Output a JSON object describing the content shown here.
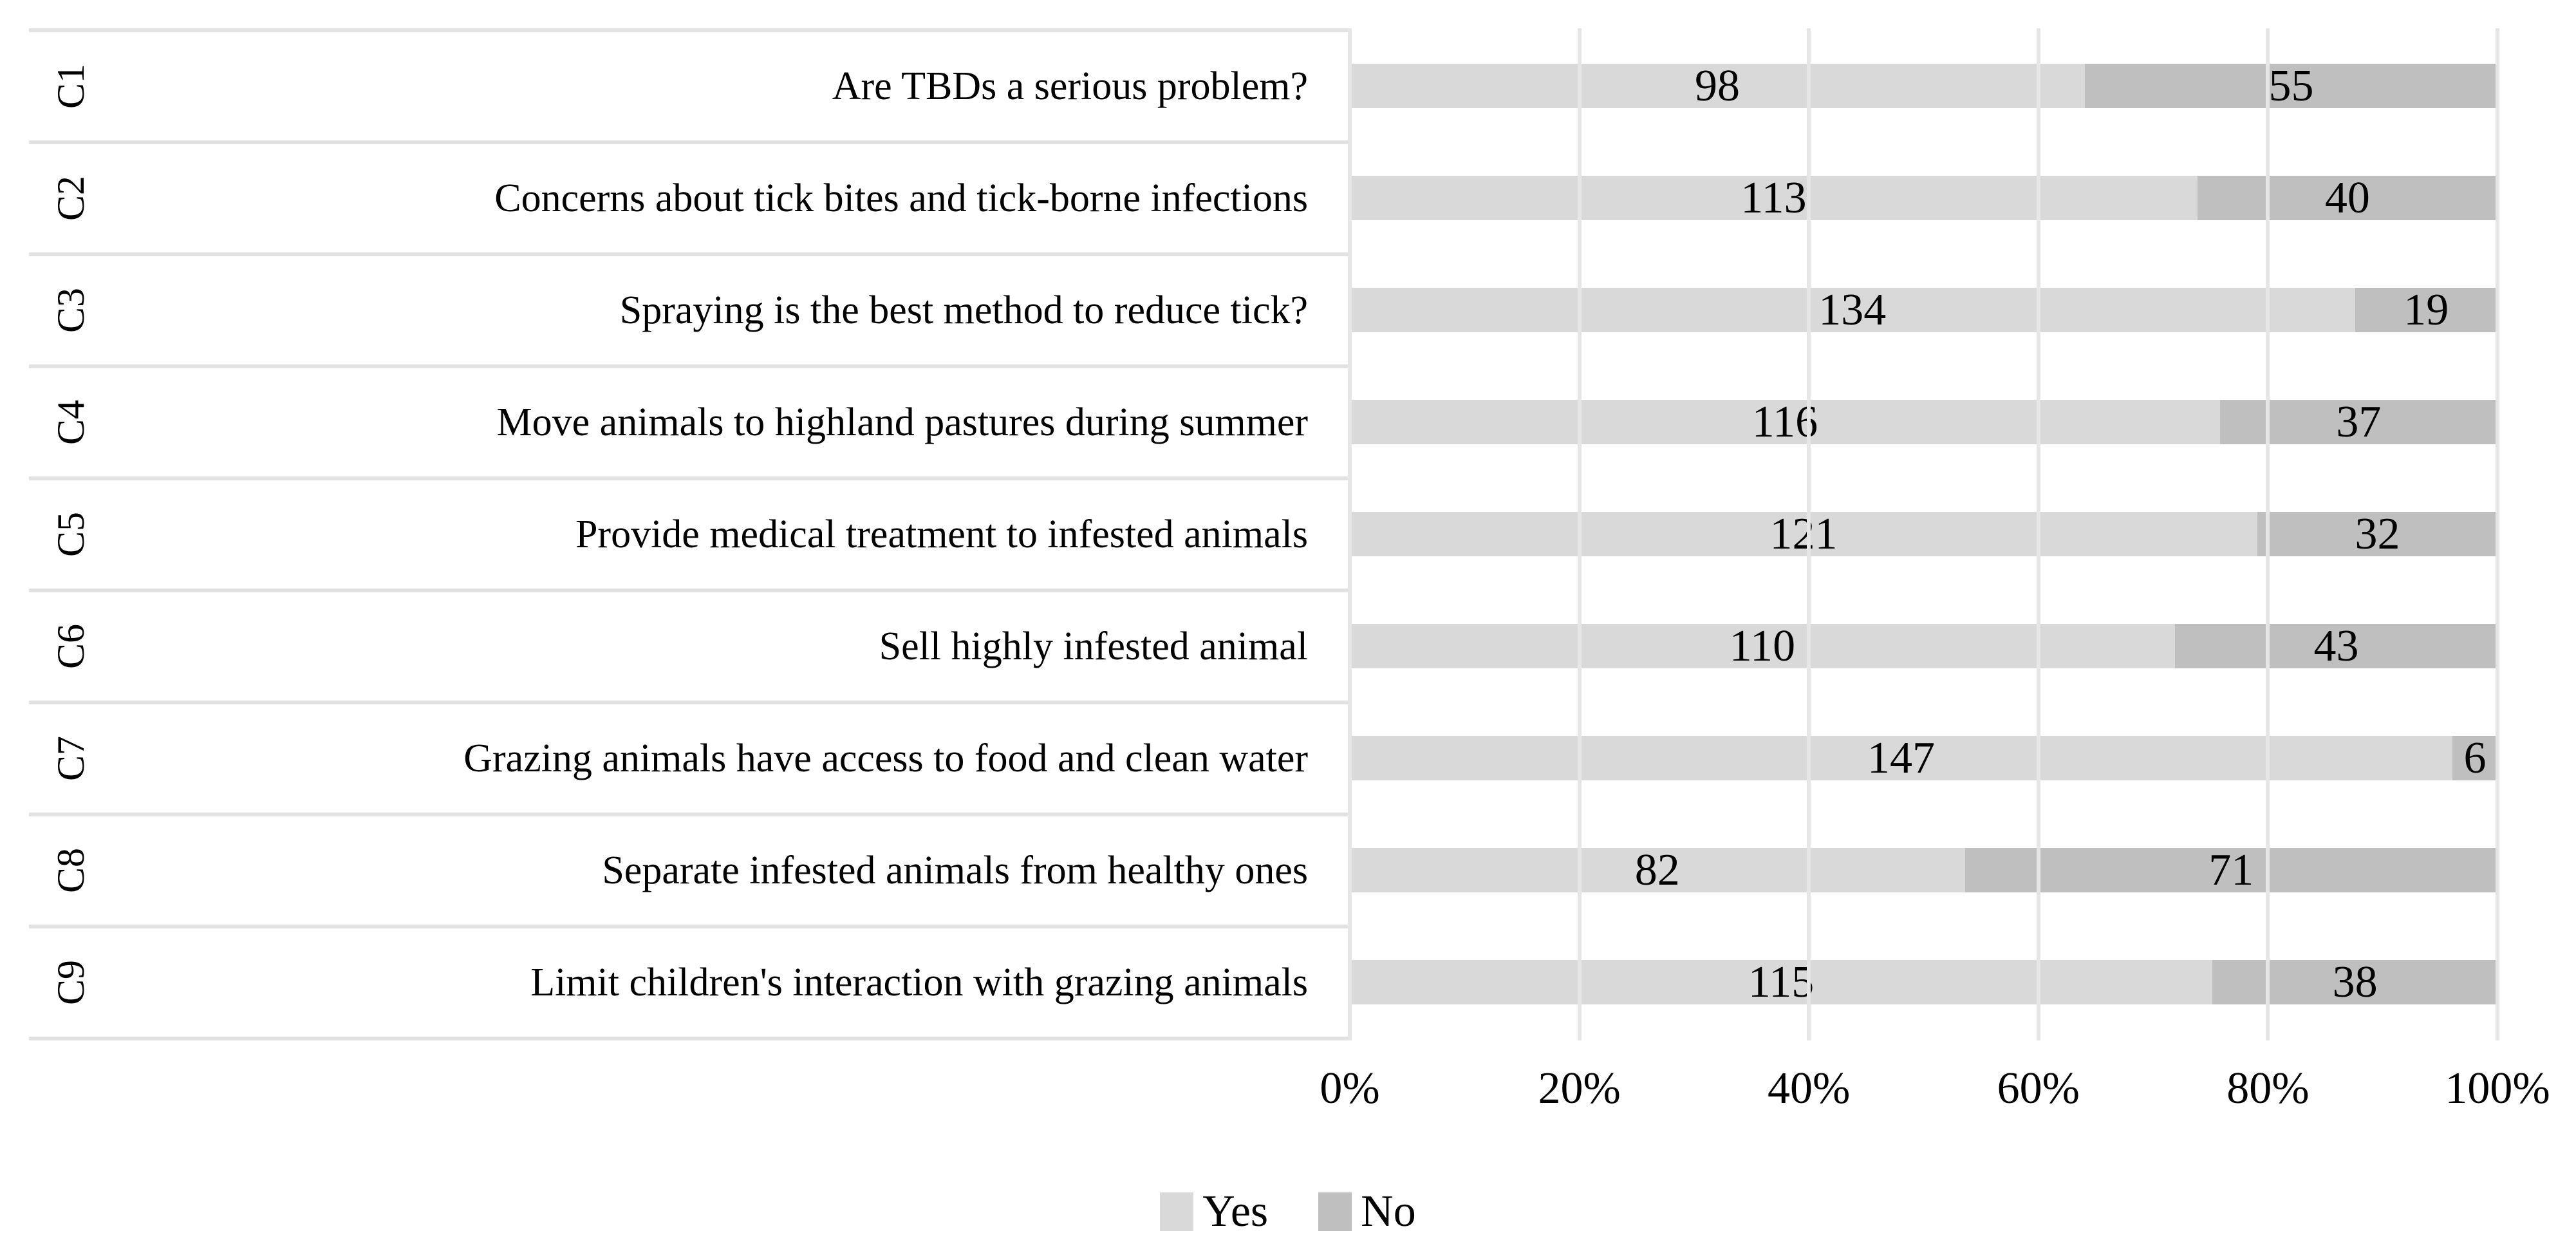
{
  "chart_data": {
    "type": "bar",
    "variant": "horizontal-100pct-stacked",
    "title": "",
    "category_codes": [
      "C1",
      "C2",
      "C3",
      "C4",
      "C5",
      "C6",
      "C7",
      "C8",
      "C9"
    ],
    "categories": [
      "Are TBDs a serious problem?",
      "Concerns about tick bites and tick-borne infections",
      "Spraying is the best method to reduce tick?",
      "Move animals to highland pastures during summer",
      "Provide medical treatment to infested animals",
      "Sell highly infested animal",
      "Grazing animals have access to food and clean water",
      "Separate infested animals from healthy ones",
      "Limit children's interaction with grazing animals"
    ],
    "series": [
      {
        "name": "Yes",
        "color": "#d9d9d9",
        "values": [
          98,
          113,
          134,
          116,
          121,
          110,
          147,
          82,
          115
        ]
      },
      {
        "name": "No",
        "color": "#bfbfbf",
        "values": [
          55,
          40,
          19,
          37,
          32,
          43,
          6,
          71,
          38
        ]
      }
    ],
    "x_axis": {
      "ticks": [
        "0%",
        "20%",
        "40%",
        "60%",
        "80%",
        "100%"
      ],
      "range": [
        0,
        100
      ]
    },
    "grid": "vertical",
    "legend_position": "bottom",
    "colors": {
      "gridline": "#e6e6e6",
      "row_separator": "#e2e2e2",
      "text": "#000000",
      "background": "#ffffff"
    }
  }
}
